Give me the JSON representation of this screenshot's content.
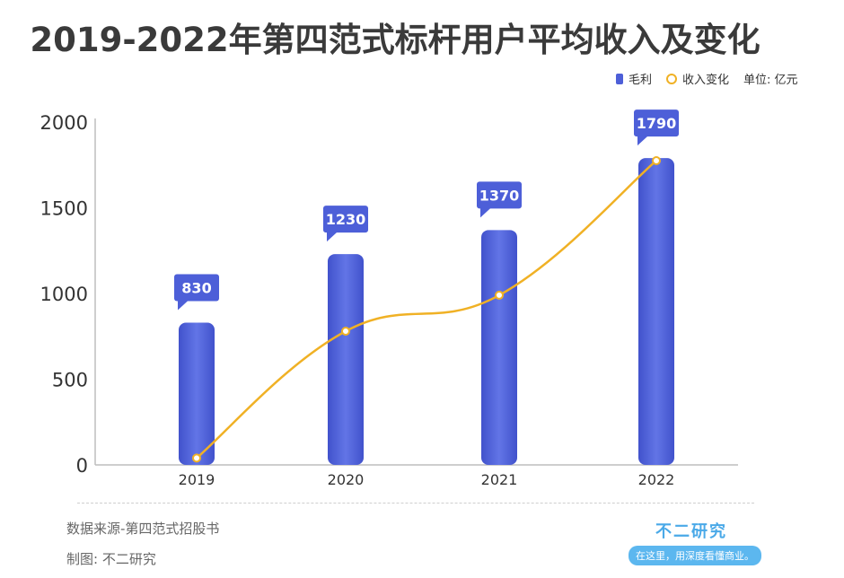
{
  "title": "2019-2022年第四范式标杆用户平均收入及变化",
  "legend": {
    "bar_label": "毛利",
    "line_label": "收入变化",
    "unit": "单位: 亿元"
  },
  "footer": {
    "source": "数据来源-第四范式招股书",
    "credit": "制图: 不二研究",
    "brand_name": "不二研究",
    "brand_slogan": "在这里，用深度看懂商业。"
  },
  "colors": {
    "bar": "#4d5fd8",
    "line": "#f0b125",
    "label_bg": "#4d5fd8"
  },
  "chart_data": {
    "type": "bar",
    "categories": [
      "2019",
      "2020",
      "2021",
      "2022"
    ],
    "series": [
      {
        "name": "毛利",
        "type": "bar",
        "values": [
          830,
          1230,
          1370,
          1790
        ]
      },
      {
        "name": "收入变化",
        "type": "line",
        "values": [
          40,
          780,
          990,
          1775
        ]
      }
    ],
    "ylim": [
      0,
      2000
    ],
    "yticks": [
      "0",
      "500",
      "1000",
      "1500",
      "2000"
    ],
    "grid": false,
    "legend_position": "top-right"
  }
}
